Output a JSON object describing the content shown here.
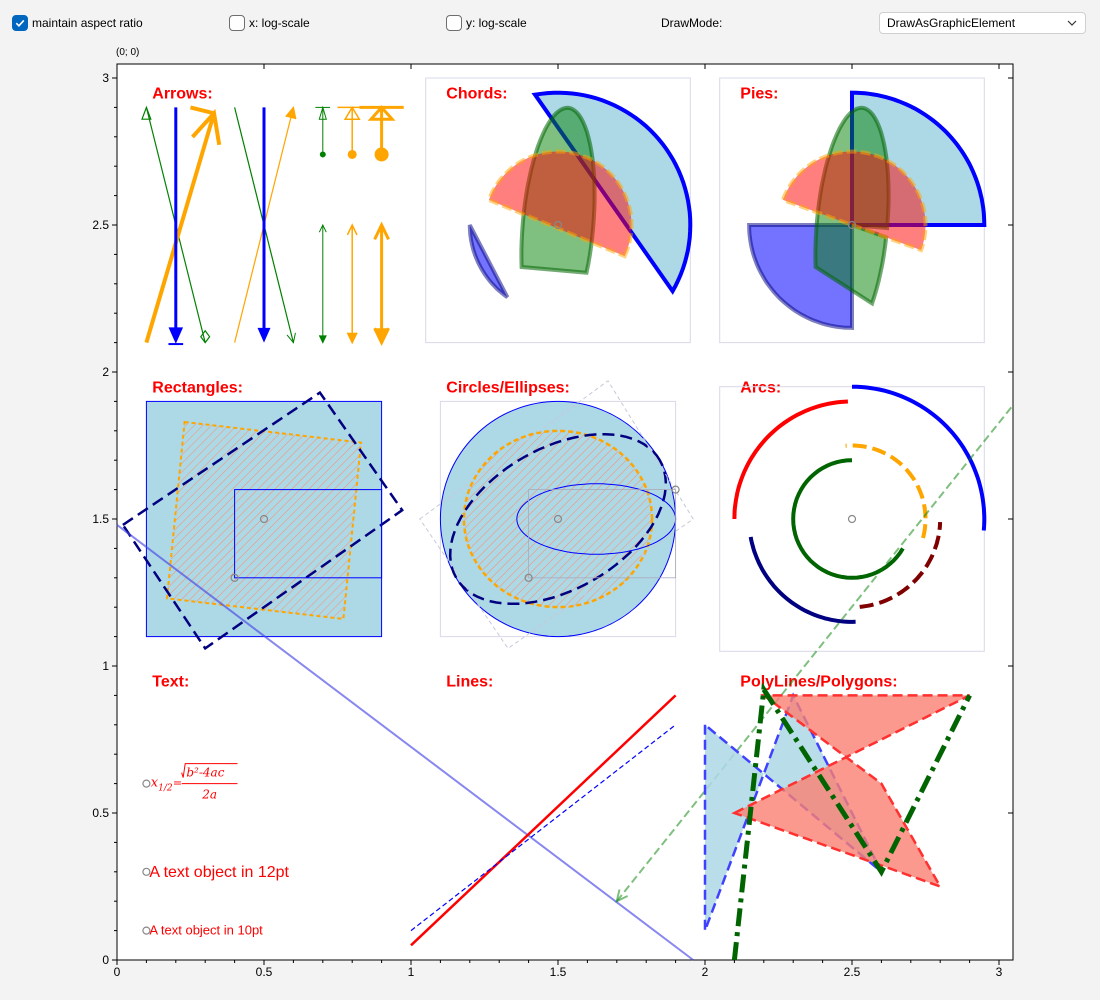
{
  "toolbar": {
    "maintain_aspect": {
      "label": "maintain aspect ratio",
      "checked": true
    },
    "x_log": {
      "label": "x: log-scale",
      "checked": false
    },
    "y_log": {
      "label": "y: log-scale",
      "checked": false
    },
    "drawmode_label": "DrawMode:",
    "drawmode_value": "DrawAsGraphicElement"
  },
  "coordinate_readout": "(0; 0)",
  "chart_data": {
    "type": "scatter",
    "xlim": [
      0,
      3.05
    ],
    "ylim": [
      0,
      3.05
    ],
    "x_ticks": [
      "0",
      "0.5",
      "1",
      "1.5",
      "2",
      "2.5",
      "3"
    ],
    "y_ticks": [
      "0",
      "0.5",
      "1",
      "1.5",
      "2",
      "2.5",
      "3"
    ],
    "grid": false,
    "section_titles": {
      "arrows": "Arrows:",
      "chords": "Chords:",
      "pies": "Pies:",
      "rectangles": "Rectangles:",
      "circles": "Circles/Ellipses:",
      "arcs": "Arcs:",
      "text": "Text:",
      "lines": "Lines:",
      "polys": "PolyLines/Polygons:"
    },
    "text_items": {
      "formula_lhs": "x",
      "formula_sub": "1/2",
      "formula_eq": "=",
      "formula_num": "b²-4ac",
      "formula_den": "2a",
      "text12": "A text object in 12pt",
      "text10": "A text object in 10pt"
    },
    "colors": {
      "title": "#ff0000",
      "orange": "#ffa500",
      "blue": "#0000ff",
      "green": "#008000",
      "lightblue": "#add8e6",
      "navy": "#000080",
      "darkgreen": "#006400",
      "darkred": "#800000",
      "salmon": "#fa8072"
    }
  }
}
